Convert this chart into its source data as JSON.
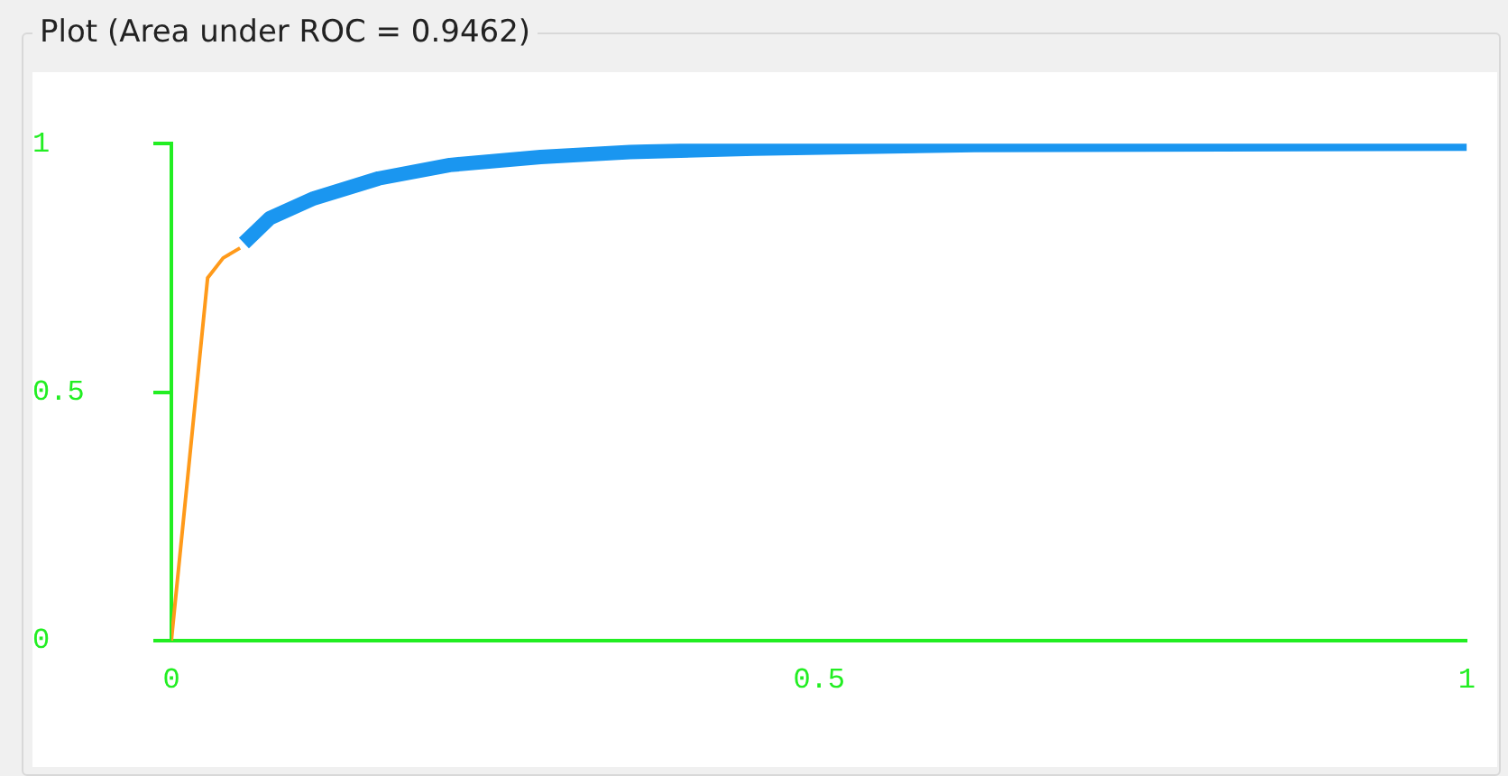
{
  "chart_data": {
    "type": "line",
    "title": "Plot (Area under ROC = 0.9462)",
    "series": [
      {
        "color": "#ff9a1a",
        "x": [
          0,
          0.028,
          0.04,
          0.053
        ],
        "values": [
          0,
          0.73,
          0.77,
          0.79
        ]
      },
      {
        "color": "#1a96f0",
        "x": [
          0.056,
          0.076,
          0.11,
          0.16,
          0.215,
          0.285,
          0.354,
          0.45,
          0.62,
          1
        ],
        "values": [
          0.8,
          0.85,
          0.89,
          0.93,
          0.957,
          0.973,
          0.983,
          0.99,
          0.997,
          1
        ]
      }
    ],
    "xlim": [
      0,
      1
    ],
    "ylim": [
      0,
      1
    ],
    "xticks": [
      0,
      0.5,
      1
    ],
    "yticks": [
      0,
      0.5,
      1
    ],
    "grid": false,
    "legend": false
  }
}
